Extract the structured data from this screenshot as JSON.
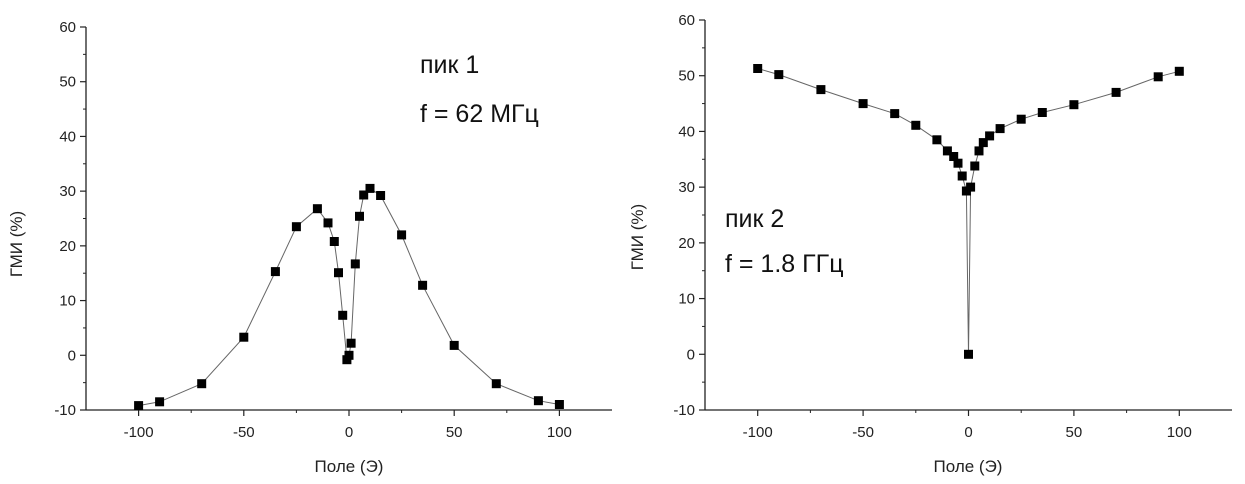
{
  "chart_data": [
    {
      "type": "line",
      "title": "",
      "xlabel": "Поле (Э)",
      "ylabel": "ГМИ (%)",
      "xlim": [
        -125,
        125
      ],
      "ylim": [
        -10,
        60
      ],
      "xticks": [
        -100,
        -50,
        0,
        50,
        100
      ],
      "yticks": [
        -10,
        0,
        10,
        20,
        30,
        40,
        50,
        60
      ],
      "tick_labels_x": [
        "-100",
        "-50",
        "0",
        "50",
        "100"
      ],
      "tick_labels_y": [
        "-10",
        "0",
        "10",
        "20",
        "30",
        "40",
        "50",
        "60"
      ],
      "grid": false,
      "marker": "square",
      "annotations": [
        "пик 1",
        "f = 62 МГц"
      ],
      "series": [
        {
          "x": [
            -100,
            -90,
            -70,
            -50,
            -35,
            -25,
            -15,
            -10,
            -7,
            -5,
            -3,
            -1,
            0,
            1,
            3,
            5,
            7,
            10,
            15,
            25,
            35,
            50,
            70,
            90,
            100
          ],
          "y": [
            -9.2,
            -8.5,
            -5.2,
            3.3,
            15.3,
            23.5,
            26.8,
            24.2,
            20.8,
            15.1,
            7.3,
            -0.8,
            0.0,
            2.2,
            16.7,
            25.4,
            29.3,
            30.5,
            29.2,
            22.0,
            12.8,
            1.8,
            -5.2,
            -8.3,
            -9.0
          ]
        }
      ]
    },
    {
      "type": "line",
      "title": "",
      "xlabel": "Поле (Э)",
      "ylabel": "ГМИ (%)",
      "xlim": [
        -125,
        125
      ],
      "ylim": [
        -10,
        60
      ],
      "xticks": [
        -100,
        -50,
        0,
        50,
        100
      ],
      "yticks": [
        -10,
        0,
        10,
        20,
        30,
        40,
        50,
        60
      ],
      "tick_labels_x": [
        "-100",
        "-50",
        "0",
        "50",
        "100"
      ],
      "tick_labels_y": [
        "-10",
        "0",
        "10",
        "20",
        "30",
        "40",
        "50",
        "60"
      ],
      "grid": false,
      "marker": "square",
      "annotations": [
        "пик 2",
        "f = 1.8 ГГц"
      ],
      "series": [
        {
          "x": [
            -100,
            -90,
            -70,
            -50,
            -35,
            -25,
            -15,
            -10,
            -7,
            -5,
            -3,
            -1,
            0,
            1,
            3,
            5,
            7,
            10,
            15,
            25,
            35,
            50,
            70,
            90,
            100
          ],
          "y": [
            51.3,
            50.2,
            47.5,
            45.0,
            43.2,
            41.1,
            38.5,
            36.5,
            35.5,
            34.3,
            32.0,
            29.3,
            0.0,
            30.0,
            33.8,
            36.5,
            38.0,
            39.2,
            40.5,
            42.2,
            43.4,
            44.8,
            47.0,
            49.8,
            50.8
          ]
        }
      ]
    }
  ],
  "colors": {
    "axis": "#222222",
    "line": "#666666",
    "marker": "#000000"
  }
}
